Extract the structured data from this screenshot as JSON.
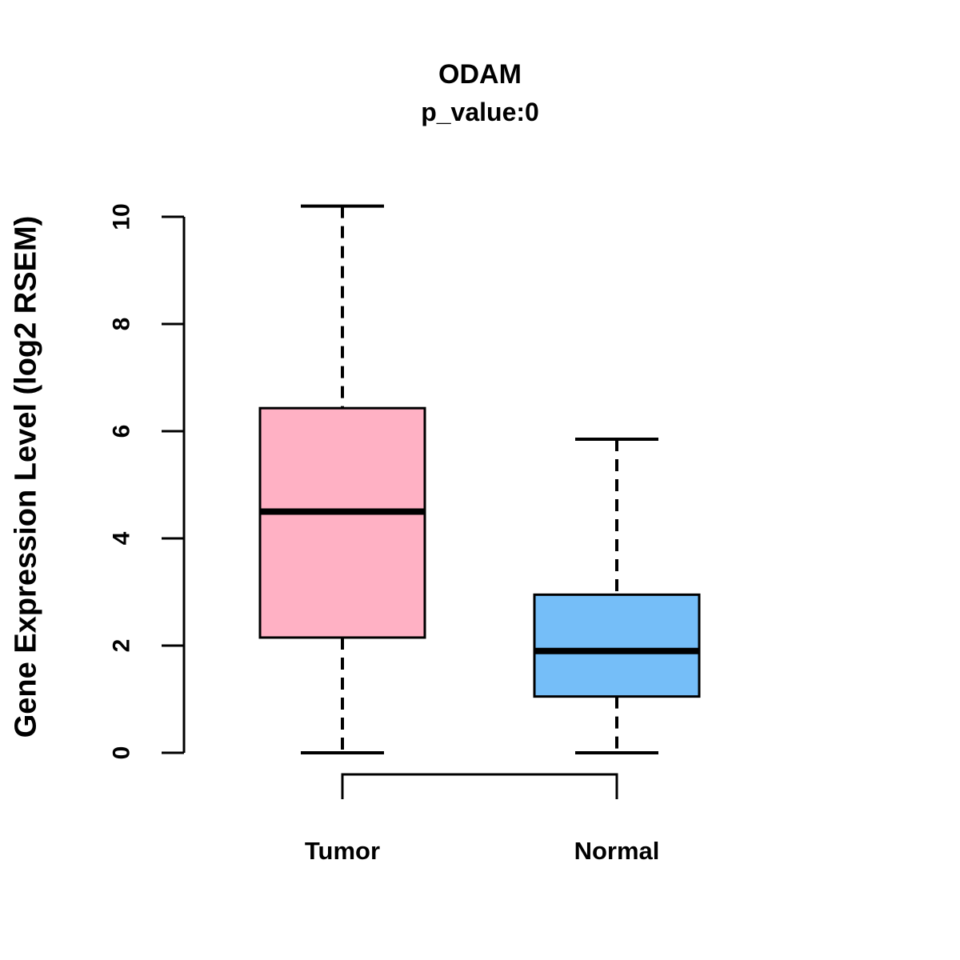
{
  "title": "ODAM",
  "subtitle": "p_value:0",
  "y_axis_label": "Gene Expression Level (log2 RSEM)",
  "colors": {
    "tumor_fill": "#FFB1C4",
    "normal_fill": "#75BEF8",
    "line": "#000000",
    "background": "#FFFFFF"
  },
  "chart_data": {
    "type": "boxplot",
    "title": "ODAM",
    "subtitle": "p_value:0",
    "xlabel": "",
    "ylabel": "Gene Expression Level (log2 RSEM)",
    "categories": [
      "Tumor",
      "Normal"
    ],
    "series": [
      {
        "name": "Tumor",
        "min": 0,
        "q1": 2.15,
        "median": 4.5,
        "q3": 6.43,
        "max": 10.2,
        "fill": "#FFB1C4"
      },
      {
        "name": "Normal",
        "min": 0,
        "q1": 1.05,
        "median": 1.9,
        "q3": 2.95,
        "max": 5.85,
        "fill": "#75BEF8"
      }
    ],
    "yticks": [
      0,
      2,
      4,
      6,
      8,
      10
    ],
    "ylim": [
      0,
      10.2
    ],
    "grid": false,
    "legend": false,
    "whisker_style": "dashed",
    "comparison_bracket": [
      "Tumor",
      "Normal"
    ]
  }
}
